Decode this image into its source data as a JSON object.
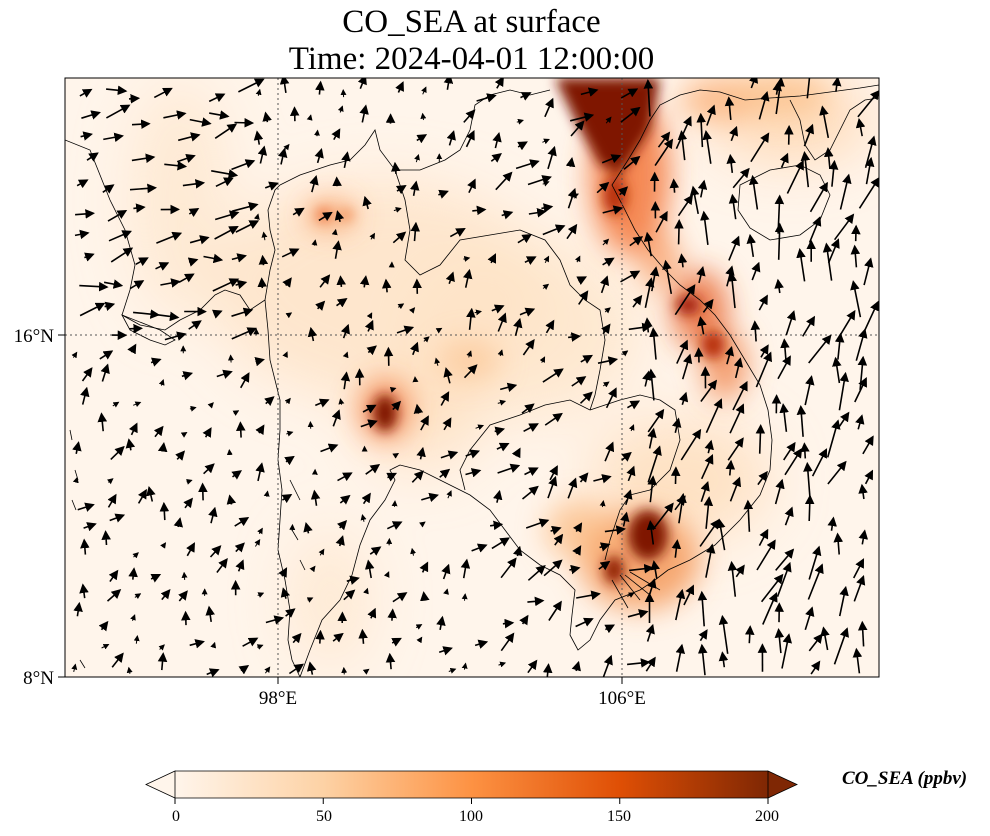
{
  "title": {
    "line1": "CO_SEA at surface",
    "line2": "Time: 2024-04-01 12:00:00"
  },
  "axes": {
    "lon_ticks": [
      "98°E",
      "106°E"
    ],
    "lat_ticks": [
      "16°N",
      "8°N"
    ],
    "lon_tick_values": [
      98,
      106
    ],
    "lat_tick_values": [
      16,
      8
    ]
  },
  "colorbar": {
    "label": "CO_SEA (ppbv)",
    "min": 0,
    "max": 200,
    "ticks": [
      "0",
      "50",
      "100",
      "150",
      "200"
    ],
    "colors": [
      "#fff5eb",
      "#fdd2a5",
      "#fd9243",
      "#df4f05",
      "#7f2704"
    ],
    "extend": "both"
  },
  "map": {
    "background_color": "#fff5eb",
    "gridline_style": "dotted",
    "hotspots": [
      {
        "region": "South China / northern Vietnam",
        "level": "200+"
      },
      {
        "region": "Red River Delta coast",
        "level": "150"
      },
      {
        "region": "Central Vietnam coast",
        "level": "160"
      },
      {
        "region": "Mekong Delta / Ho Chi Minh City",
        "level": "200+"
      },
      {
        "region": "Western Thailand",
        "level": "200"
      },
      {
        "region": "Northern Thailand",
        "level": "90"
      }
    ]
  }
}
